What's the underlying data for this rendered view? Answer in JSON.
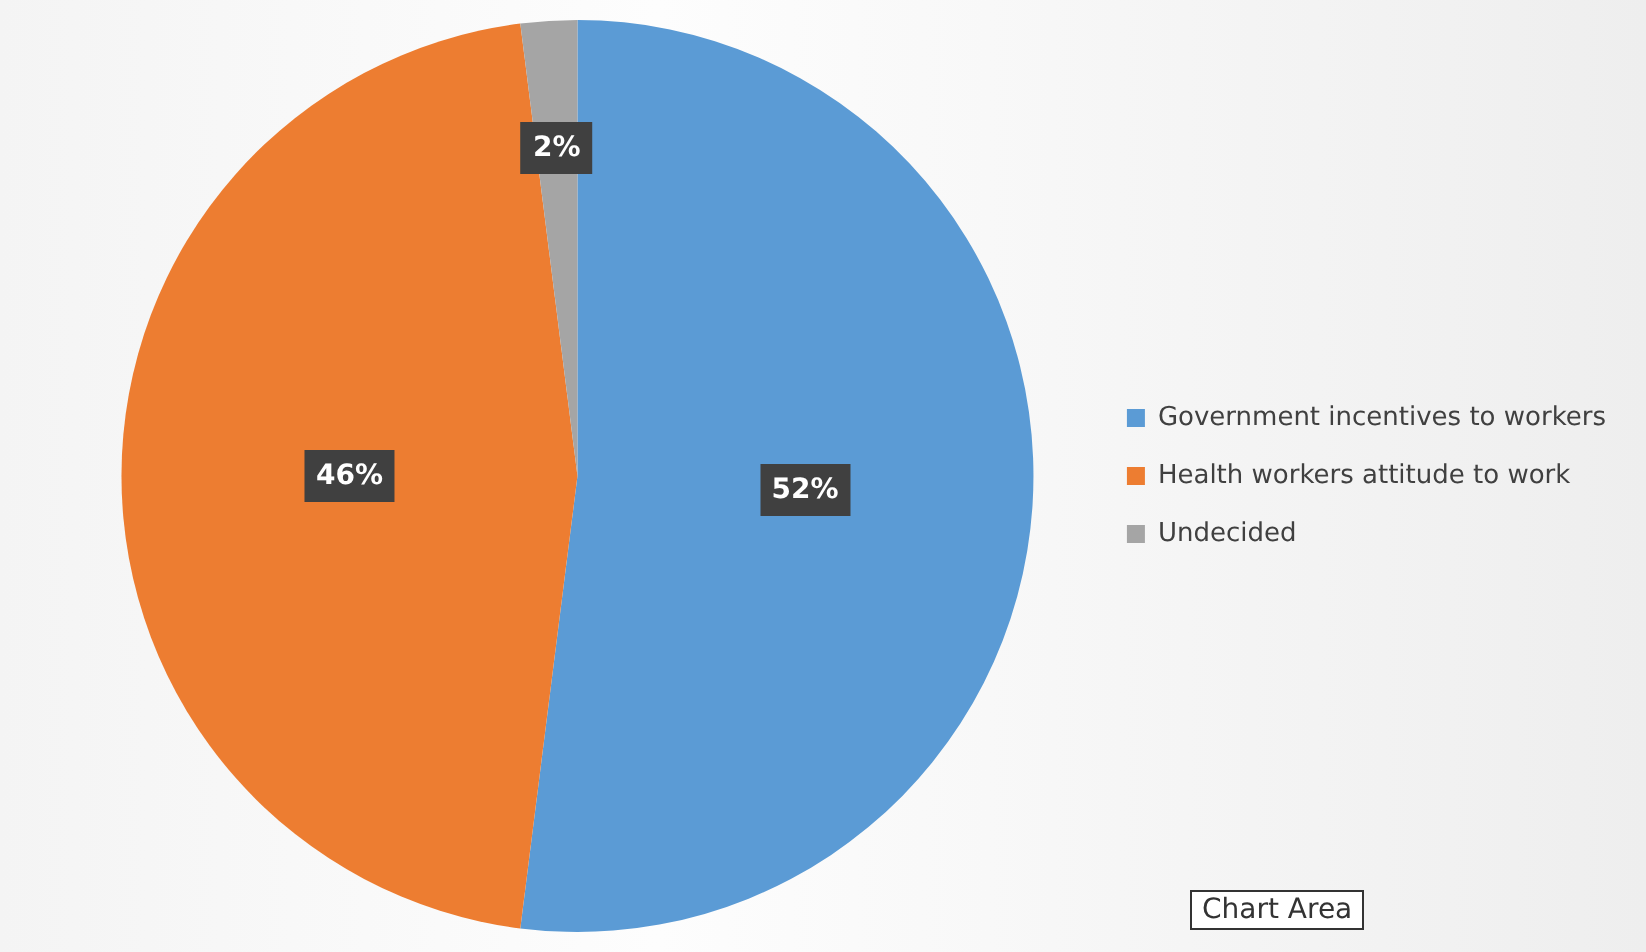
{
  "chart_data": {
    "type": "pie",
    "categories": [
      "Government incentives to workers",
      "Health workers attitude to work",
      "Undecided"
    ],
    "values": [
      52,
      46,
      2
    ],
    "colors": [
      "#5b9bd5",
      "#ed7d31",
      "#a5a5a5"
    ],
    "value_labels": [
      "52%",
      "46%",
      "2%"
    ],
    "legend": "right",
    "annotations": [
      "Chart Area"
    ]
  }
}
